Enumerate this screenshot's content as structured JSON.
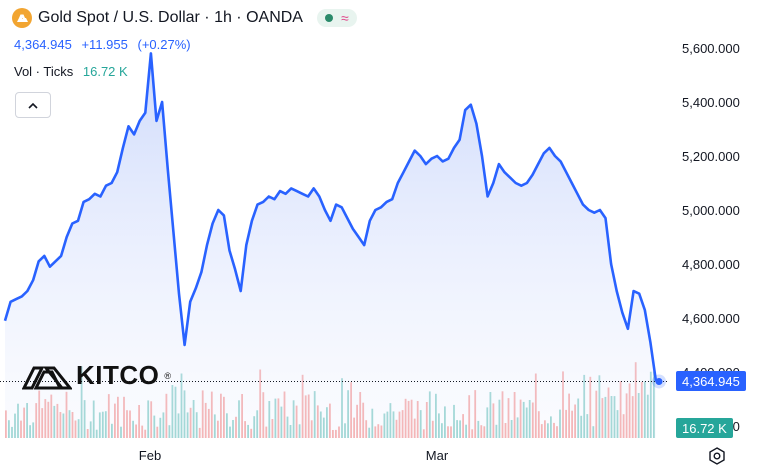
{
  "header": {
    "symbol_title": "Gold Spot / U.S. Dollar · 1h · OANDA",
    "last_price": "4,364.945",
    "change": "+11.955",
    "change_pct": "(+0.27%)",
    "icon": "gold-bars-icon"
  },
  "volume_legend": {
    "label": "Vol · Ticks",
    "value": "16.72 K"
  },
  "collapse_icon": "chevron-up-icon",
  "logo": {
    "text": "KITCO",
    "mark": "®"
  },
  "price_axis": {
    "ticks": [
      "5,600.000",
      "5,400.000",
      "5,200.000",
      "5,000.000",
      "4,800.000",
      "4,600.000",
      "4,400.000",
      "4,200.000"
    ],
    "current_price_tag": "4,364.945",
    "volume_tag": "16.72 K"
  },
  "time_axis": {
    "labels": [
      "Feb",
      "Mar"
    ]
  },
  "colors": {
    "line": "#2962ff",
    "area_top": "#c9d6fb",
    "up_volume": "#26a69a",
    "down_volume": "#ef5350",
    "price_tag": "#2962ff",
    "volume_tag": "#26a69a"
  },
  "chart_data": {
    "type": "area",
    "title": "Gold Spot / U.S. Dollar · 1h · OANDA",
    "xlabel": "",
    "ylabel": "",
    "ylim": [
      4300,
      5680
    ],
    "x_labels": [
      "Feb",
      "Mar"
    ],
    "series": [
      {
        "values": [
          4590,
          4660,
          4670,
          4680,
          4700,
          4740,
          4810,
          4830,
          4790,
          4810,
          4830,
          4900,
          4950,
          4960,
          5030,
          5040,
          5060,
          5050,
          5090,
          5100,
          5140,
          5230,
          5310,
          5280,
          5330,
          5360,
          5580,
          5330,
          5400,
          5150,
          4920,
          4690,
          4500,
          4660,
          4710,
          4770,
          4870,
          4950,
          5000,
          4980,
          4850,
          4780,
          4700,
          4870,
          4960,
          5020,
          5030,
          5050,
          5040,
          5070,
          5060,
          5080,
          5070,
          5060,
          5050,
          5080,
          5050,
          5000,
          4960,
          5020,
          5010,
          4970,
          4930,
          4900,
          4870,
          4960,
          5000,
          5010,
          5030,
          5040,
          5100,
          5140,
          5180,
          5220,
          5200,
          5170,
          5190,
          5200,
          5180,
          5190,
          5230,
          5260,
          5370,
          5390,
          5320,
          5200,
          5050,
          5100,
          5170,
          5140,
          5120,
          5100,
          5090,
          5100,
          5130,
          5170,
          5210,
          5230,
          5200,
          5180,
          5140,
          5100,
          5060,
          5020,
          5000,
          4990,
          5000,
          4970,
          4800,
          4700,
          4620,
          4560,
          4700,
          4690,
          4630,
          4510,
          4364.945
        ]
      }
    ],
    "volume": {
      "label": "Vol · Ticks",
      "last": "16.72 K"
    },
    "last_price": 4364.945,
    "grid": false,
    "legend": "top-left"
  }
}
